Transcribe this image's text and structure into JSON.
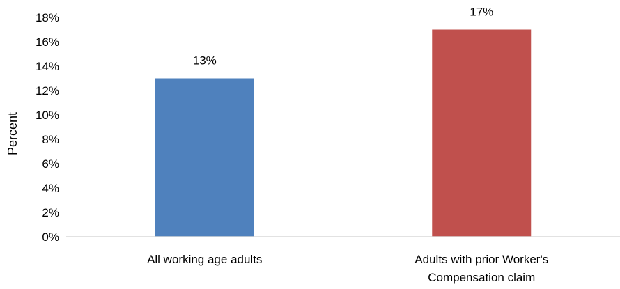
{
  "chart_data": {
    "type": "bar",
    "title": "",
    "xlabel": "",
    "ylabel": "Percent",
    "ylim": [
      0,
      18
    ],
    "ytick_step": 2,
    "ytick_labels": [
      "0%",
      "2%",
      "4%",
      "6%",
      "8%",
      "10%",
      "12%",
      "14%",
      "16%",
      "18%"
    ],
    "grid": false,
    "legend": "none",
    "categories": [
      [
        "All working age adults"
      ],
      [
        "Adults with prior Worker's",
        "Compensation claim"
      ]
    ],
    "values": [
      13,
      17
    ],
    "data_labels": [
      "13%",
      "17%"
    ],
    "colors": [
      "#4F81BD",
      "#C0504D"
    ],
    "axis_color": "#D9D9D9"
  }
}
